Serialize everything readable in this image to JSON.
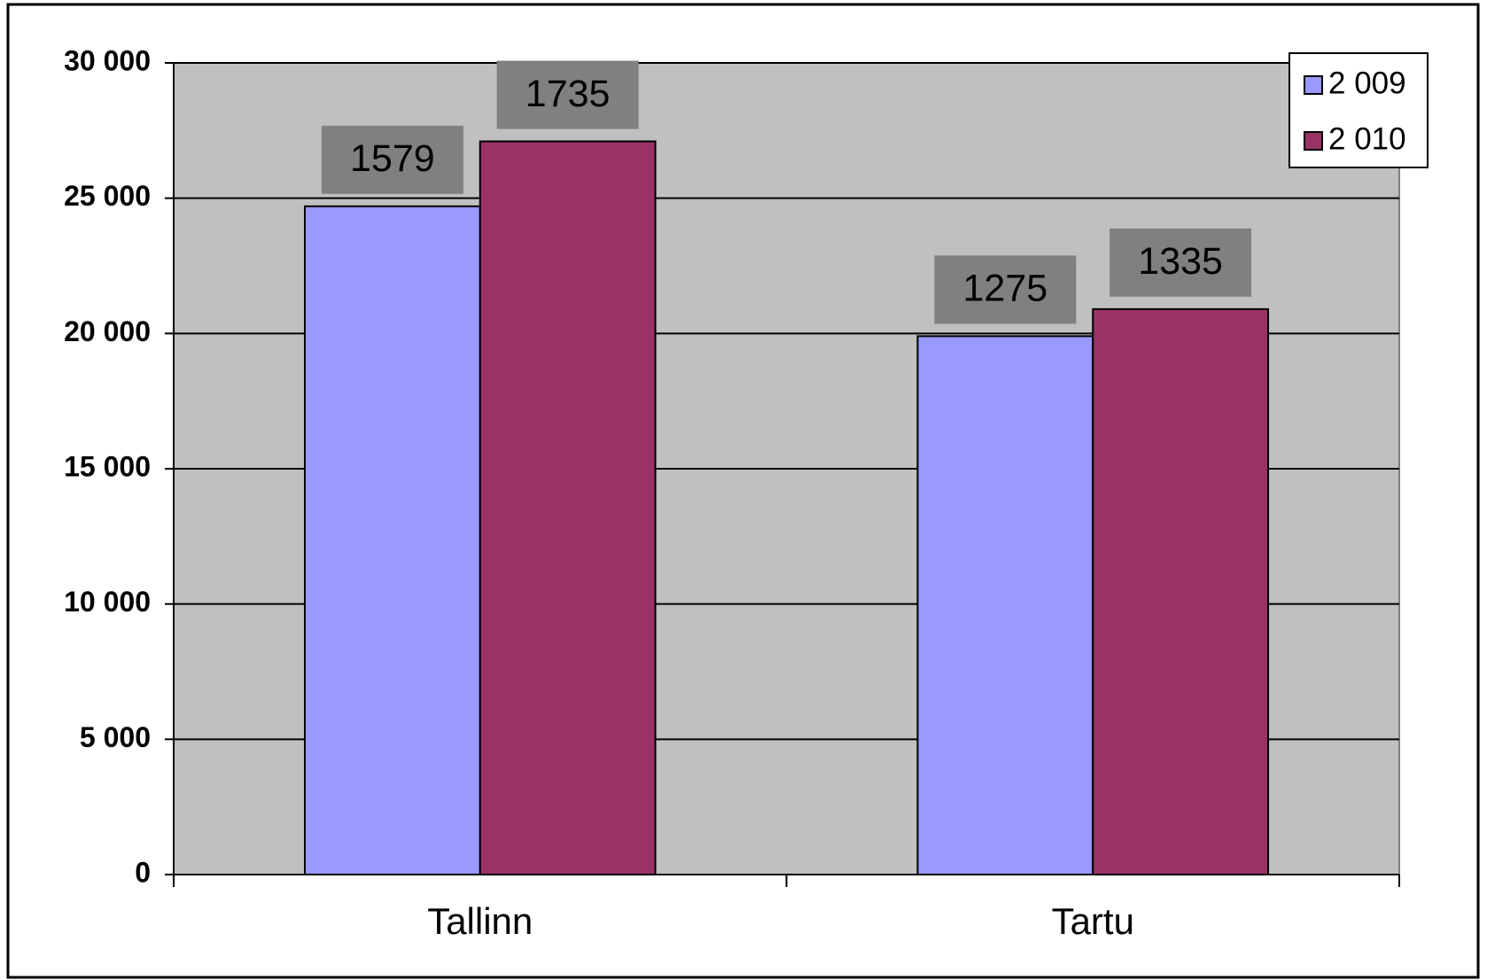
{
  "chart_data": {
    "type": "bar",
    "categories": [
      "Tallinn",
      "Tartu"
    ],
    "series": [
      {
        "name": "2 009",
        "color": "#9999ff",
        "values": [
          24700,
          19900
        ],
        "annotations": [
          "1579",
          "1275"
        ]
      },
      {
        "name": "2 010",
        "color": "#993366",
        "values": [
          27100,
          20900
        ],
        "annotations": [
          "1735",
          "1335"
        ]
      }
    ],
    "ylim": [
      0,
      30000
    ],
    "yticks": [
      0,
      {
        "value": 5000,
        "label": "5 000"
      },
      {
        "value": 10000,
        "label": "10 000"
      },
      {
        "value": 15000,
        "label": "15 000"
      },
      {
        "value": 20000,
        "label": "20 000"
      },
      {
        "value": 25000,
        "label": "25 000"
      },
      {
        "value": 30000,
        "label": "30 000"
      }
    ],
    "grid": true,
    "legend": "top-right",
    "plot_background": "#c0c0c0"
  }
}
